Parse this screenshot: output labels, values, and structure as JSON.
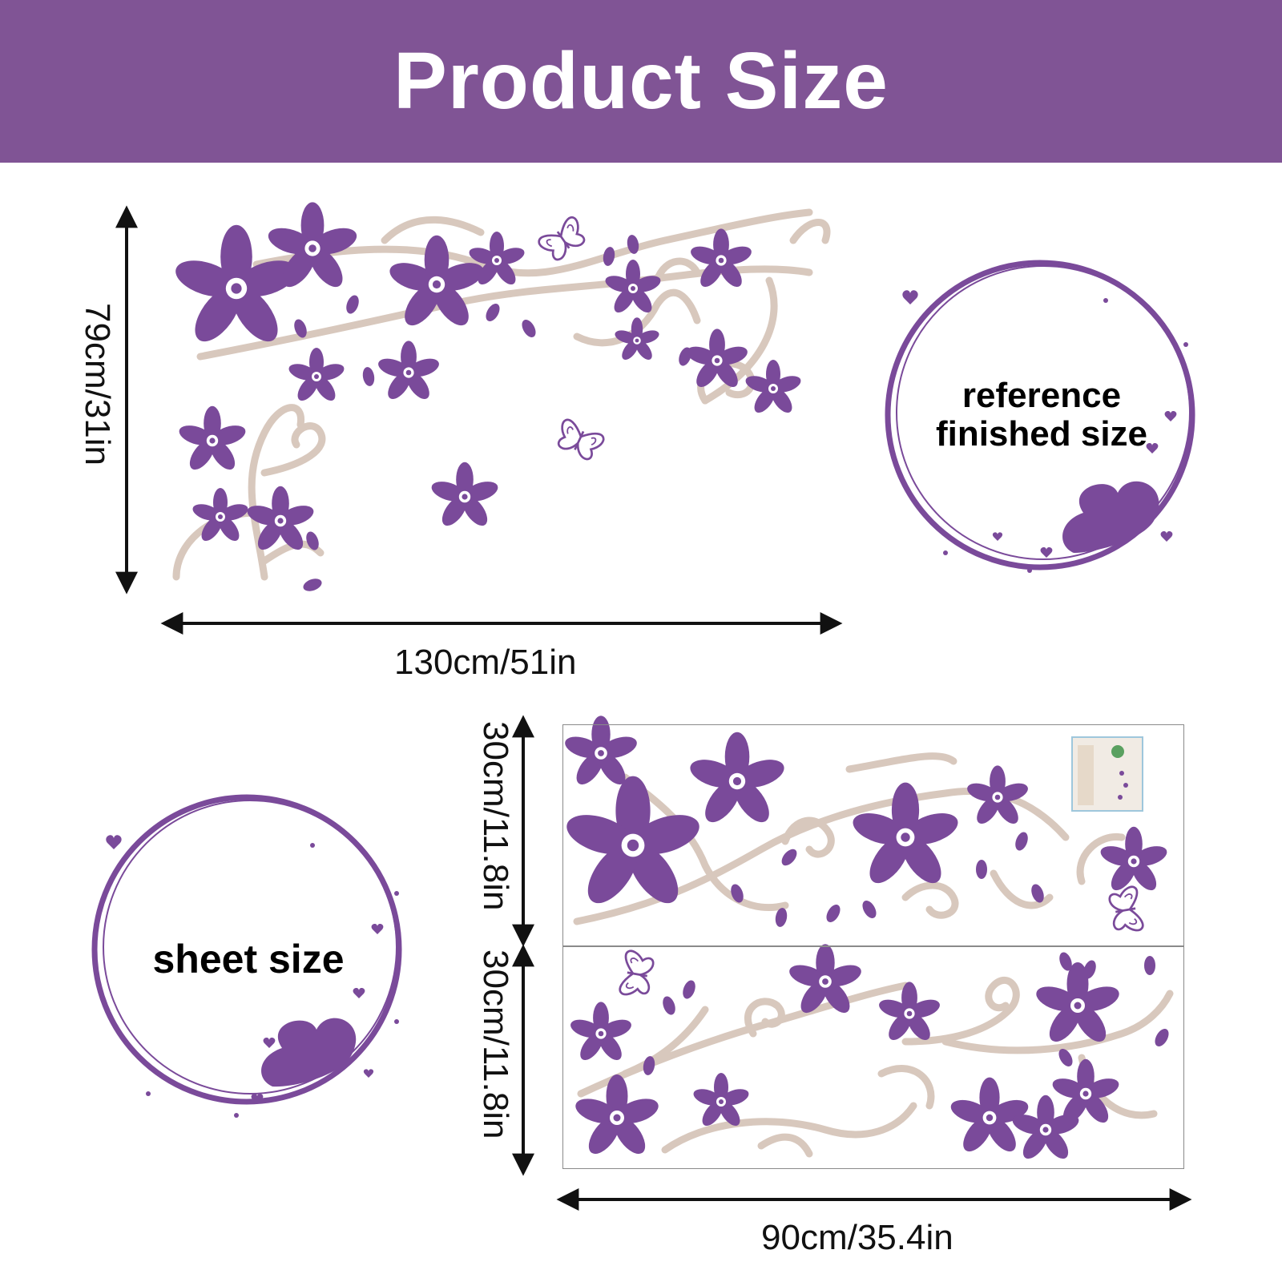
{
  "header": {
    "title": "Product Size"
  },
  "finished": {
    "height_label": "79cm/31in",
    "width_label": "130cm/51in"
  },
  "badges": {
    "reference": "reference finished size",
    "sheet": "sheet size"
  },
  "sheets": {
    "sheet1_height_label": "30cm/11.8in",
    "sheet2_height_label": "30cm/11.8in",
    "width_label": "90cm/35.4in"
  },
  "colors": {
    "banner": "#805495",
    "flower": "#7a4a9a",
    "vine": "#d8c8bd",
    "text": "#111111"
  }
}
